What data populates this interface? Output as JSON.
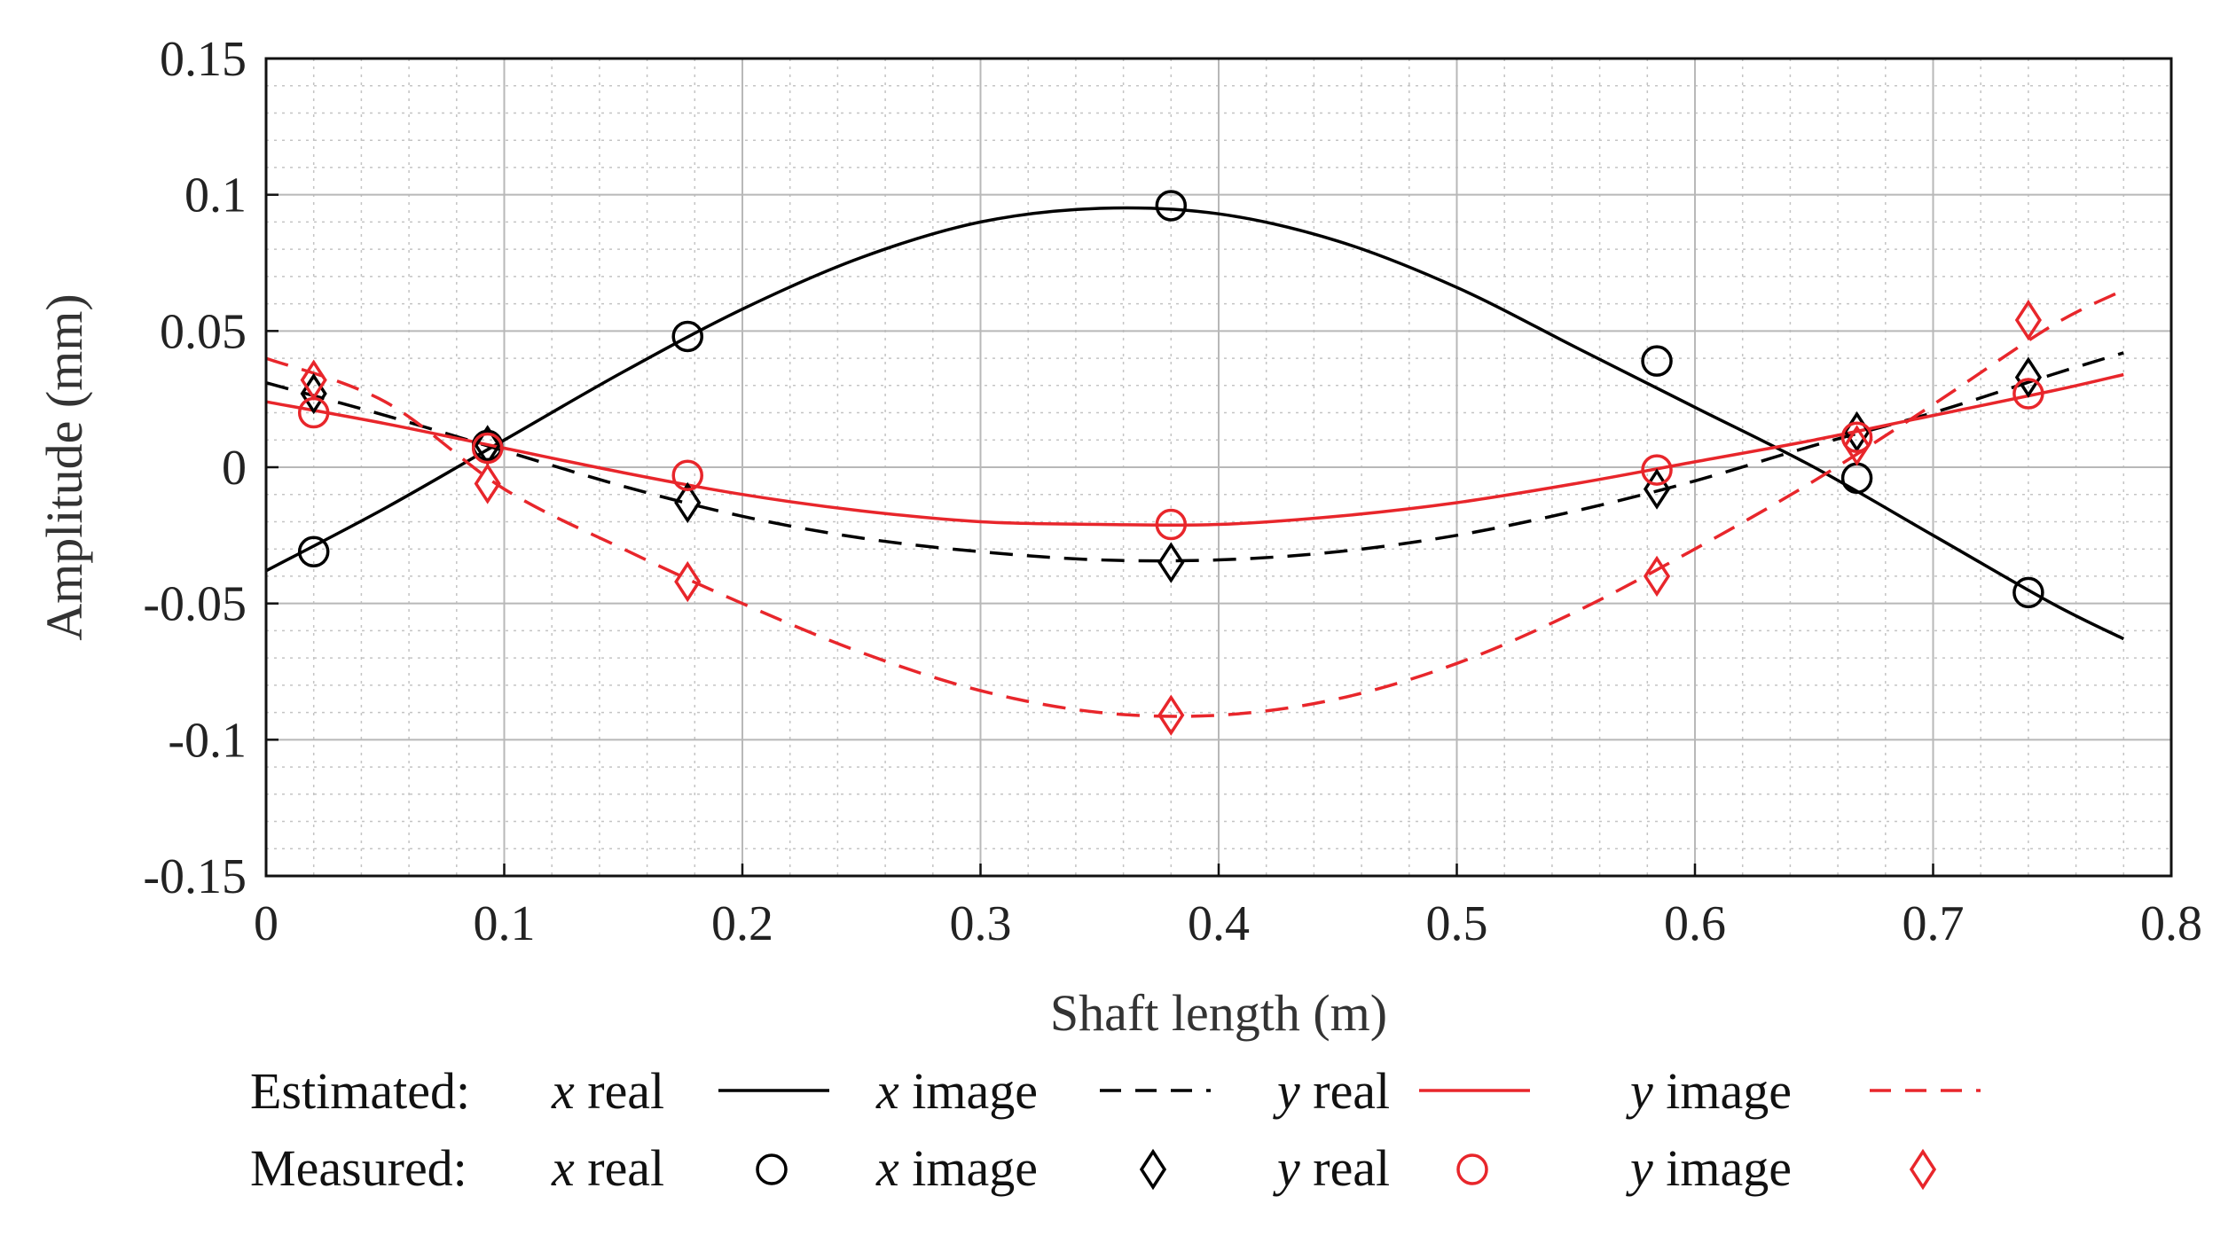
{
  "chart_data": {
    "type": "line",
    "title": "",
    "xlabel": "Shaft length (m)",
    "ylabel": "Amplitude (mm)",
    "xlim": [
      0,
      0.8
    ],
    "ylim": [
      -0.15,
      0.15
    ],
    "xticks": [
      0,
      0.1,
      0.2,
      0.3,
      0.4,
      0.5,
      0.6,
      0.7,
      0.8
    ],
    "yticks": [
      -0.15,
      -0.1,
      -0.05,
      0,
      0.05,
      0.1,
      0.15
    ],
    "xtick_labels": [
      "0",
      "0.1",
      "0.2",
      "0.3",
      "0.4",
      "0.5",
      "0.6",
      "0.7",
      "0.8"
    ],
    "ytick_labels": [
      "-0.15",
      "-0.1",
      "-0.05",
      "0",
      "0.05",
      "0.1",
      "0.15"
    ],
    "grid": true,
    "minor_grid": true,
    "estimated": [
      {
        "name": "x real",
        "color": "#000000",
        "dash": "solid",
        "x": [
          0,
          0.05,
          0.1,
          0.15,
          0.2,
          0.25,
          0.3,
          0.35,
          0.4,
          0.45,
          0.5,
          0.55,
          0.6,
          0.65,
          0.7,
          0.75,
          0.78
        ],
        "y": [
          -0.038,
          -0.015,
          0.01,
          0.035,
          0.058,
          0.077,
          0.09,
          0.095,
          0.093,
          0.083,
          0.066,
          0.044,
          0.022,
          0.0,
          -0.025,
          -0.05,
          -0.063
        ]
      },
      {
        "name": "x image",
        "color": "#000000",
        "dash": "dashed",
        "x": [
          0,
          0.05,
          0.1,
          0.15,
          0.2,
          0.25,
          0.3,
          0.35,
          0.4,
          0.45,
          0.5,
          0.55,
          0.6,
          0.65,
          0.7,
          0.75,
          0.78
        ],
        "y": [
          0.031,
          0.019,
          0.006,
          -0.007,
          -0.018,
          -0.026,
          -0.031,
          -0.034,
          -0.034,
          -0.031,
          -0.025,
          -0.016,
          -0.005,
          0.008,
          0.02,
          0.034,
          0.042
        ]
      },
      {
        "name": "y real",
        "color": "#e8262b",
        "dash": "solid",
        "x": [
          0,
          0.05,
          0.1,
          0.15,
          0.2,
          0.25,
          0.3,
          0.35,
          0.4,
          0.45,
          0.5,
          0.55,
          0.6,
          0.65,
          0.7,
          0.75,
          0.78
        ],
        "y": [
          0.024,
          0.016,
          0.007,
          -0.002,
          -0.01,
          -0.016,
          -0.02,
          -0.021,
          -0.021,
          -0.018,
          -0.013,
          -0.006,
          0.002,
          0.01,
          0.019,
          0.028,
          0.034
        ]
      },
      {
        "name": "y image",
        "color": "#e8262b",
        "dash": "dashed",
        "x": [
          0,
          0.05,
          0.1,
          0.15,
          0.2,
          0.25,
          0.3,
          0.35,
          0.4,
          0.45,
          0.5,
          0.55,
          0.6,
          0.65,
          0.7,
          0.75,
          0.78
        ],
        "y": [
          0.04,
          0.024,
          -0.008,
          -0.03,
          -0.05,
          -0.068,
          -0.082,
          -0.09,
          -0.091,
          -0.085,
          -0.072,
          -0.053,
          -0.03,
          -0.005,
          0.023,
          0.052,
          0.065
        ]
      }
    ],
    "measured": [
      {
        "name": "x real",
        "color": "#000000",
        "marker": "circle",
        "x": [
          0.02,
          0.093,
          0.177,
          0.38,
          0.584,
          0.668,
          0.74
        ],
        "y": [
          -0.031,
          0.008,
          0.048,
          0.096,
          0.039,
          -0.004,
          -0.046
        ]
      },
      {
        "name": "x image",
        "color": "#000000",
        "marker": "diamond",
        "x": [
          0.02,
          0.093,
          0.177,
          0.38,
          0.584,
          0.668,
          0.74
        ],
        "y": [
          0.027,
          0.008,
          -0.013,
          -0.035,
          -0.008,
          0.013,
          0.033
        ]
      },
      {
        "name": "y real",
        "color": "#e8262b",
        "marker": "circle",
        "x": [
          0.02,
          0.093,
          0.177,
          0.38,
          0.584,
          0.668,
          0.74
        ],
        "y": [
          0.02,
          0.007,
          -0.003,
          -0.021,
          -0.001,
          0.011,
          0.027
        ]
      },
      {
        "name": "y image",
        "color": "#e8262b",
        "marker": "diamond",
        "x": [
          0.02,
          0.093,
          0.177,
          0.38,
          0.584,
          0.668,
          0.74
        ],
        "y": [
          0.032,
          -0.006,
          -0.042,
          -0.091,
          -0.04,
          0.008,
          0.054
        ]
      }
    ],
    "legend": {
      "placement": "bottom",
      "estimated_label": "Estimated:",
      "measured_label": "Measured:",
      "entries": [
        {
          "var": "x",
          "part": "real"
        },
        {
          "var": "x",
          "part": "image"
        },
        {
          "var": "y",
          "part": "real"
        },
        {
          "var": "y",
          "part": "image"
        }
      ]
    }
  }
}
